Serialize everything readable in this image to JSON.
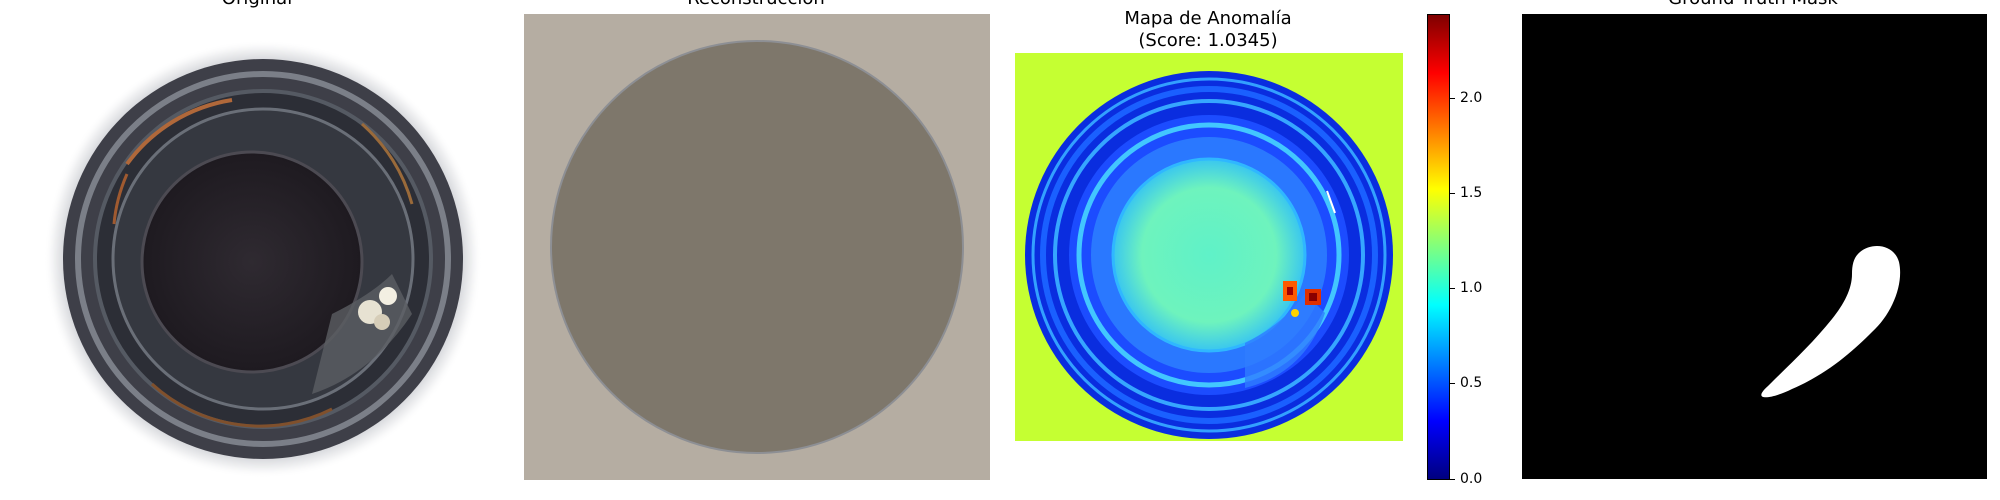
{
  "panels": {
    "original": {
      "title": "Original"
    },
    "reconstruction": {
      "title": "Reconstrucción"
    },
    "anomaly_map": {
      "title_line1": "Mapa de Anomalía",
      "title_line2": "(Score: 1.0345)"
    },
    "ground_truth": {
      "title": "Ground Truth Mask"
    }
  },
  "colorbar": {
    "ticks": [
      "2.0",
      "1.5",
      "1.0",
      "0.5",
      "0.0"
    ],
    "colormap": "jet"
  },
  "colors": {
    "reconstruction_background": "#b5ada2",
    "reconstruction_disk": "#7e776b",
    "anomaly_background": "#c5ff32",
    "mask_background": "#000000",
    "mask_region": "#ffffff"
  }
}
